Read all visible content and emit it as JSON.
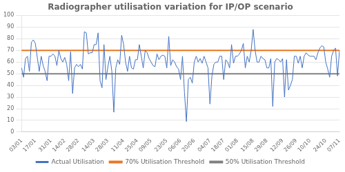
{
  "chart_data": {
    "type": "line",
    "title": "Radiographer utilisation variation for IP/OP scenario",
    "categories": [
      "03/01",
      null,
      null,
      null,
      null,
      null,
      null,
      "17/01",
      null,
      null,
      null,
      null,
      null,
      null,
      null,
      "31/01",
      null,
      null,
      null,
      null,
      null,
      null,
      "14/02",
      null,
      null,
      null,
      null,
      null,
      null,
      "28/02",
      null,
      null,
      null,
      null,
      null,
      null,
      null,
      "14/03",
      null,
      null,
      null,
      null,
      null,
      null,
      "28/03",
      null,
      null,
      null,
      null,
      null,
      null,
      null,
      "11/04",
      null,
      null,
      null,
      null,
      null,
      null,
      "25/04",
      null,
      null,
      null,
      null,
      null,
      null,
      "09/05",
      null,
      null,
      null,
      null,
      null,
      null,
      null,
      "23/05",
      null,
      null,
      null,
      null,
      null,
      null,
      "06/06",
      null,
      null,
      null,
      null,
      null,
      null,
      "20/06",
      null,
      null,
      null,
      null,
      null,
      null,
      null,
      "04/07",
      null,
      null,
      null,
      null,
      null,
      null,
      "18/07",
      null,
      null,
      null,
      null,
      null,
      null,
      "01/08",
      null,
      null,
      null,
      null,
      null,
      null,
      null,
      "15/08",
      null,
      null,
      null,
      null,
      null,
      null,
      "29/08",
      null,
      null,
      null,
      null,
      null,
      null,
      null,
      "12/09",
      null,
      null,
      null,
      null,
      null,
      null,
      "26/09",
      null,
      null,
      null,
      null,
      null,
      null,
      "10/10",
      null,
      null,
      null,
      null,
      null,
      null,
      null,
      "24/10",
      null,
      null,
      null,
      null,
      null,
      null,
      "07/11"
    ],
    "series": [
      {
        "name": "Actual Utilisation",
        "color": "#4472C4",
        "values": [
          55,
          47,
          63,
          65,
          52,
          77,
          79,
          76,
          64,
          52,
          65,
          57,
          52,
          44,
          65,
          65,
          67,
          65,
          57,
          70,
          63,
          60,
          64,
          58,
          44,
          69,
          33,
          55,
          58,
          56,
          58,
          54,
          86,
          85,
          67,
          68,
          68,
          75,
          75,
          85,
          44,
          38,
          75,
          45,
          56,
          65,
          52,
          17,
          55,
          62,
          58,
          83,
          75,
          60,
          52,
          65,
          55,
          54,
          62,
          62,
          75,
          65,
          55,
          70,
          68,
          63,
          60,
          57,
          56,
          67,
          62,
          65,
          66,
          65,
          55,
          82,
          57,
          62,
          60,
          56,
          54,
          45,
          65,
          34,
          9,
          45,
          47,
          42,
          60,
          65,
          60,
          63,
          59,
          65,
          60,
          55,
          24,
          48,
          58,
          60,
          60,
          65,
          65,
          45,
          62,
          60,
          55,
          75,
          59,
          65,
          65,
          67,
          70,
          76,
          55,
          65,
          60,
          70,
          88,
          70,
          60,
          60,
          65,
          63,
          62,
          55,
          55,
          63,
          22,
          60,
          63,
          62,
          60,
          63,
          30,
          62,
          36,
          40,
          45,
          65,
          65,
          59,
          65,
          55,
          65,
          68,
          66,
          65,
          65,
          65,
          62,
          68,
          72,
          74,
          73,
          60,
          54,
          47,
          65,
          70,
          72,
          48,
          70
        ]
      },
      {
        "name": "70% Utilisation Threshold",
        "color": "#E87722",
        "type": "hline",
        "value": 70
      },
      {
        "name": "50% Utilisation Threshold",
        "color": "#808080",
        "type": "hline",
        "value": 50
      }
    ],
    "ylim": [
      0,
      100
    ],
    "yticks": [
      0,
      10,
      20,
      30,
      40,
      50,
      60,
      70,
      80,
      90,
      100
    ],
    "grid": true,
    "legend": "bottom"
  }
}
